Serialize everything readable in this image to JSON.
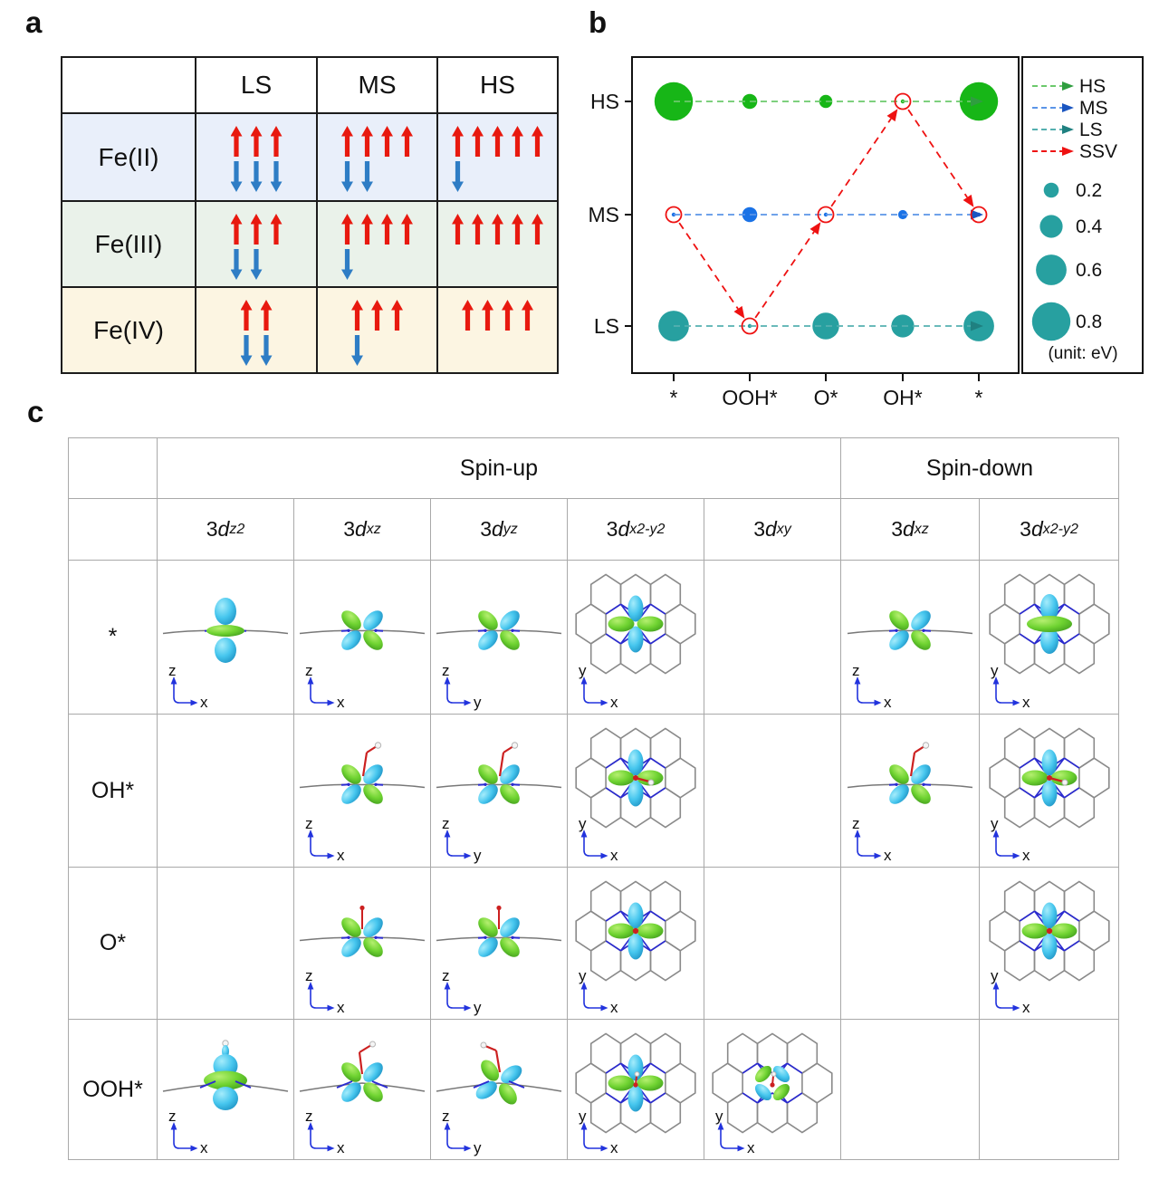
{
  "panels": {
    "a": "a",
    "b": "b",
    "c": "c"
  },
  "panel_a": {
    "column_headers": [
      "LS",
      "MS",
      "HS"
    ],
    "arrow_colors": {
      "up": "#e8190f",
      "down": "#2e7dc5"
    },
    "rows": [
      {
        "label": "Fe(II)",
        "bg": "#e9effa",
        "cells": [
          {
            "up": 3,
            "down": 3
          },
          {
            "up": 4,
            "down": 2
          },
          {
            "up": 5,
            "down": 1
          }
        ]
      },
      {
        "label": "Fe(III)",
        "bg": "#eaf2ea",
        "cells": [
          {
            "up": 3,
            "down": 2
          },
          {
            "up": 4,
            "down": 1
          },
          {
            "up": 5,
            "down": 0
          }
        ]
      },
      {
        "label": "Fe(IV)",
        "bg": "#fcf5e2",
        "cells": [
          {
            "up": 2,
            "down": 2
          },
          {
            "up": 3,
            "down": 1
          },
          {
            "up": 4,
            "down": 0
          }
        ]
      }
    ]
  },
  "panel_b": {
    "chart_data": {
      "type": "scatter",
      "x_categories": [
        "*",
        "OOH*",
        "O*",
        "OH*",
        "*"
      ],
      "y_categories": [
        "HS",
        "MS",
        "LS"
      ],
      "bubble_size_meaning": "energy scale of each spin state at each intermediate",
      "unit_label": "(unit: eV)",
      "size_legend": [
        0.2,
        0.4,
        0.6,
        0.8
      ],
      "legend_entries": [
        "HS",
        "MS",
        "LS",
        "SSV"
      ],
      "series": [
        {
          "name": "HS",
          "row": "HS",
          "color": "#17b617",
          "line_color": "#6cc96c",
          "head_color": "#2f9e3f",
          "sizes": [
            0.8,
            0.2,
            0.15,
            0.02,
            0.8
          ]
        },
        {
          "name": "MS",
          "row": "MS",
          "color": "#1a72e6",
          "line_color": "#5b95e8",
          "head_color": "#1a55c0",
          "sizes": [
            0.02,
            0.2,
            0.02,
            0.05,
            0.02
          ]
        },
        {
          "name": "LS",
          "row": "LS",
          "color": "#27a0a0",
          "line_color": "#55b0b0",
          "head_color": "#1f8080",
          "sizes": [
            0.6,
            0.02,
            0.5,
            0.4,
            0.6
          ]
        }
      ],
      "ssv": {
        "name": "SSV",
        "color": "#ee1111",
        "path": [
          [
            0,
            "MS"
          ],
          [
            1,
            "LS"
          ],
          [
            2,
            "MS"
          ],
          [
            3,
            "HS"
          ],
          [
            4,
            "MS"
          ]
        ]
      }
    }
  },
  "panel_c": {
    "group_headers": [
      {
        "label": "Spin-up",
        "span": 5
      },
      {
        "label": "Spin-down",
        "span": 2
      }
    ],
    "orbital_prefix": "3",
    "orbital_symbol": "d",
    "orbital_headers": [
      {
        "sub": "z2"
      },
      {
        "sub": "xz"
      },
      {
        "sub": "yz"
      },
      {
        "sub": "x2-y2"
      },
      {
        "sub": "xy"
      },
      {
        "sub": "xz"
      },
      {
        "sub": "x2-y2"
      }
    ],
    "colors": {
      "lobe_green": "#6fd331",
      "lobe_cyan": "#46c6ee",
      "lattice": "#8a8a8a",
      "nitrogen": "#2a2ad0",
      "oxygen_red": "#cc2020",
      "hydrogen_white": "#f5f5f5"
    },
    "rows": [
      {
        "label": "*",
        "cells": [
          {
            "v": "side-dz2",
            "ads": null,
            "ax": [
              "z",
              "x"
            ]
          },
          {
            "v": "side-dxz",
            "ads": null,
            "ax": [
              "z",
              "x"
            ]
          },
          {
            "v": "side-dxz",
            "ads": null,
            "ax": [
              "z",
              "y"
            ]
          },
          {
            "v": "top-cross",
            "ads": null,
            "ax": [
              "y",
              "x"
            ]
          },
          null,
          {
            "v": "side-dxz",
            "ads": null,
            "ax": [
              "z",
              "x"
            ]
          },
          {
            "v": "top-cross-wide",
            "ads": null,
            "ax": [
              "y",
              "x"
            ]
          }
        ]
      },
      {
        "label": "OH*",
        "cells": [
          null,
          {
            "v": "side-dxz",
            "ads": "OH",
            "ax": [
              "z",
              "x"
            ]
          },
          {
            "v": "side-dxz",
            "ads": "OH",
            "ax": [
              "z",
              "y"
            ]
          },
          {
            "v": "top-cross",
            "ads": "OH",
            "ax": [
              "y",
              "x"
            ]
          },
          null,
          {
            "v": "side-dxz",
            "ads": "OH",
            "ax": [
              "z",
              "x"
            ]
          },
          {
            "v": "top-cross",
            "ads": "OH",
            "ax": [
              "y",
              "x"
            ]
          }
        ]
      },
      {
        "label": "O*",
        "cells": [
          null,
          {
            "v": "side-dxz",
            "ads": "O",
            "ax": [
              "z",
              "x"
            ]
          },
          {
            "v": "side-dxz",
            "ads": "O",
            "ax": [
              "z",
              "y"
            ]
          },
          {
            "v": "top-cross",
            "ads": "O",
            "ax": [
              "y",
              "x"
            ]
          },
          null,
          null,
          {
            "v": "top-cross",
            "ads": "O",
            "ax": [
              "y",
              "x"
            ]
          }
        ]
      },
      {
        "label": "OOH*",
        "cells": [
          {
            "v": "side-dz2-ooh",
            "ads": null,
            "ax": [
              "z",
              "x"
            ]
          },
          {
            "v": "side-dxz-ooh",
            "ads": "OOH",
            "ax": [
              "z",
              "x"
            ]
          },
          {
            "v": "side-dyz-ooh",
            "ads": "OOH-left",
            "ax": [
              "z",
              "y"
            ]
          },
          {
            "v": "top-cross",
            "ads": "OOH",
            "ax": [
              "y",
              "x"
            ]
          },
          {
            "v": "top-diag",
            "ads": "OOH",
            "ax": [
              "y",
              "x"
            ]
          },
          null,
          null
        ]
      }
    ]
  }
}
